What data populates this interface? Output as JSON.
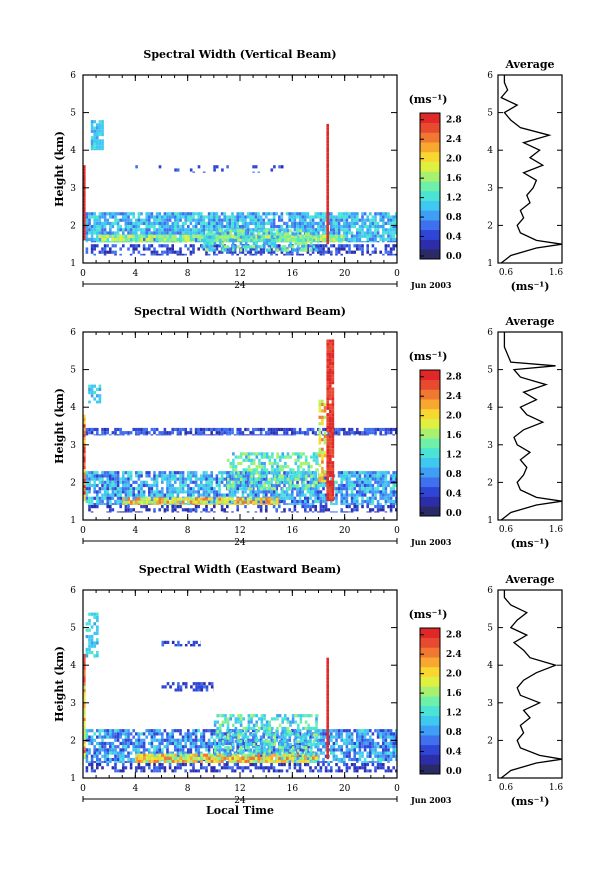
{
  "chart_data": [
    {
      "type": "heatmap",
      "title": "Spectral Width (Vertical Beam)",
      "ylabel": "Height (km)",
      "ylim": [
        1,
        6
      ],
      "xlim": [
        0,
        24
      ],
      "x_ticks": [
        "0",
        "4",
        "8",
        "12",
        "16",
        "20",
        "0"
      ],
      "y_ticks": [
        "1",
        "2",
        "3",
        "4",
        "5",
        "6"
      ],
      "date_label": "Jun 2003",
      "day_label": "24",
      "colorbar": {
        "unit": "(ms⁻¹)",
        "ticks": [
          "0.0",
          "0.4",
          "0.8",
          "1.2",
          "1.6",
          "2.0",
          "2.4",
          "2.8"
        ],
        "range": [
          0,
          3.0
        ],
        "colors": [
          "#2a2a66",
          "#2b2ea8",
          "#2f45d6",
          "#3f70ee",
          "#3f9ef5",
          "#3fc8f0",
          "#4be3d6",
          "#6ff0a8",
          "#a8f070",
          "#e0f040",
          "#f8d830",
          "#f8a830",
          "#f07830",
          "#e84a30",
          "#e02828"
        ]
      },
      "layers": [
        {
          "x0": 0.2,
          "x1": 24,
          "y0": 1.55,
          "y1": 2.35,
          "min": 0.6,
          "max": 1.4,
          "density": 0.85
        },
        {
          "x0": 0.2,
          "x1": 24,
          "y0": 1.2,
          "y1": 1.5,
          "min": 0.2,
          "max": 0.8,
          "density": 0.55
        },
        {
          "x0": 1,
          "x1": 20,
          "y0": 1.55,
          "y1": 1.75,
          "min": 1.3,
          "max": 2.0,
          "density": 0.9
        },
        {
          "x0": 9,
          "x1": 18,
          "y0": 1.3,
          "y1": 1.9,
          "min": 0.8,
          "max": 1.8,
          "density": 0.6
        },
        {
          "x0": 0.6,
          "x1": 1.6,
          "y0": 4.0,
          "y1": 4.8,
          "min": 0.9,
          "max": 1.3,
          "density": 0.8
        },
        {
          "x0": 4,
          "x1": 16,
          "y0": 3.4,
          "y1": 3.6,
          "min": 0.3,
          "max": 0.7,
          "density": 0.12
        },
        {
          "x0": 0,
          "x1": 0.2,
          "y0": 1.6,
          "y1": 3.6,
          "min": 2.8,
          "max": 3.0,
          "density": 1.0
        },
        {
          "x0": 18.6,
          "x1": 18.8,
          "y0": 1.5,
          "y1": 4.7,
          "min": 2.8,
          "max": 3.0,
          "density": 1.0
        }
      ],
      "profile_title": "Average",
      "profile_xlabel": "(ms⁻¹)",
      "profile_xlim": [
        0.6,
        1.6
      ],
      "profile_xticks": [
        "0.6",
        "1.6"
      ],
      "profile_y": [
        1.0,
        1.2,
        1.4,
        1.5,
        1.6,
        1.8,
        2.0,
        2.2,
        2.4,
        2.6,
        2.8,
        3.0,
        3.2,
        3.4,
        3.6,
        3.8,
        4.0,
        4.2,
        4.4,
        4.6,
        4.8,
        5.0,
        5.2,
        5.4,
        5.6,
        5.8,
        6.0
      ],
      "profile_x": [
        0.65,
        0.8,
        1.2,
        1.6,
        1.2,
        0.95,
        0.9,
        1.0,
        0.95,
        1.1,
        1.05,
        1.15,
        1.2,
        1.0,
        1.3,
        1.1,
        1.25,
        1.0,
        1.4,
        0.95,
        0.8,
        0.7,
        0.9,
        0.65,
        0.75,
        0.7,
        0.7
      ]
    },
    {
      "type": "heatmap",
      "title": "Spectral Width (Northward Beam)",
      "ylabel": "Height (km)",
      "ylim": [
        1,
        6
      ],
      "xlim": [
        0,
        24
      ],
      "x_ticks": [
        "0",
        "4",
        "8",
        "12",
        "16",
        "20",
        "0"
      ],
      "y_ticks": [
        "1",
        "2",
        "3",
        "4",
        "5",
        "6"
      ],
      "date_label": "Jun 2003",
      "day_label": "24",
      "colorbar": {
        "unit": "(ms⁻¹)",
        "ticks": [
          "0.0",
          "0.4",
          "0.8",
          "1.2",
          "1.6",
          "2.0",
          "2.4",
          "2.8"
        ],
        "range": [
          0,
          3.0
        ],
        "colors": [
          "#2a2a66",
          "#2b2ea8",
          "#2f45d6",
          "#3f70ee",
          "#3f9ef5",
          "#3fc8f0",
          "#4be3d6",
          "#6ff0a8",
          "#a8f070",
          "#e0f040",
          "#f8d830",
          "#f8a830",
          "#f07830",
          "#e84a30",
          "#e02828"
        ]
      },
      "layers": [
        {
          "x0": 0.2,
          "x1": 24,
          "y0": 1.4,
          "y1": 2.3,
          "min": 0.5,
          "max": 1.4,
          "density": 0.8
        },
        {
          "x0": 0.2,
          "x1": 24,
          "y0": 1.2,
          "y1": 1.4,
          "min": 0.2,
          "max": 0.7,
          "density": 0.45
        },
        {
          "x0": 3,
          "x1": 15,
          "y0": 1.4,
          "y1": 1.6,
          "min": 1.6,
          "max": 2.6,
          "density": 0.85
        },
        {
          "x0": 11,
          "x1": 18,
          "y0": 1.8,
          "y1": 2.8,
          "min": 0.9,
          "max": 1.8,
          "density": 0.55
        },
        {
          "x0": 0.2,
          "x1": 24,
          "y0": 3.25,
          "y1": 3.45,
          "min": 0.3,
          "max": 0.8,
          "density": 0.75
        },
        {
          "x0": 0.4,
          "x1": 1.4,
          "y0": 4.1,
          "y1": 4.6,
          "min": 0.9,
          "max": 1.3,
          "density": 0.6
        },
        {
          "x0": 0,
          "x1": 0.2,
          "y0": 1.5,
          "y1": 3.8,
          "min": 2.0,
          "max": 3.0,
          "density": 1.0
        },
        {
          "x0": 18.6,
          "x1": 19.2,
          "y0": 1.5,
          "y1": 5.8,
          "min": 2.6,
          "max": 3.0,
          "density": 0.95
        },
        {
          "x0": 18.0,
          "x1": 18.6,
          "y0": 2.0,
          "y1": 4.2,
          "min": 1.6,
          "max": 2.6,
          "density": 0.6
        }
      ],
      "profile_title": "Average",
      "profile_xlabel": "(ms⁻¹)",
      "profile_xlim": [
        0.6,
        1.6
      ],
      "profile_xticks": [
        "0.6",
        "1.6"
      ],
      "profile_y": [
        1.0,
        1.2,
        1.4,
        1.5,
        1.6,
        1.8,
        2.0,
        2.2,
        2.4,
        2.6,
        2.8,
        3.0,
        3.2,
        3.4,
        3.6,
        3.8,
        4.0,
        4.2,
        4.4,
        4.6,
        4.8,
        5.0,
        5.1,
        5.2,
        5.4,
        5.6,
        5.8,
        6.0
      ],
      "profile_x": [
        0.65,
        0.8,
        1.2,
        1.6,
        1.2,
        0.95,
        0.9,
        1.0,
        1.05,
        0.95,
        1.1,
        0.9,
        0.85,
        1.0,
        1.3,
        1.05,
        0.95,
        1.2,
        1.0,
        1.35,
        0.95,
        0.85,
        1.5,
        0.8,
        0.75,
        0.7,
        0.7,
        0.7
      ]
    },
    {
      "type": "heatmap",
      "title": "Spectral Width (Eastward Beam)",
      "xlabel": "Local Time",
      "ylabel": "Height (km)",
      "ylim": [
        1,
        6
      ],
      "xlim": [
        0,
        24
      ],
      "x_ticks": [
        "0",
        "4",
        "8",
        "12",
        "16",
        "20",
        "0"
      ],
      "y_ticks": [
        "1",
        "2",
        "3",
        "4",
        "5",
        "6"
      ],
      "date_label": "Jun 2003",
      "day_label": "24",
      "colorbar": {
        "unit": "(ms⁻¹)",
        "ticks": [
          "0.0",
          "0.4",
          "0.8",
          "1.2",
          "1.6",
          "2.0",
          "2.4",
          "2.8"
        ],
        "range": [
          0,
          3.0
        ],
        "colors": [
          "#2a2a66",
          "#2b2ea8",
          "#2f45d6",
          "#3f70ee",
          "#3f9ef5",
          "#3fc8f0",
          "#4be3d6",
          "#6ff0a8",
          "#a8f070",
          "#e0f040",
          "#f8d830",
          "#f8a830",
          "#f07830",
          "#e84a30",
          "#e02828"
        ]
      },
      "layers": [
        {
          "x0": 0.2,
          "x1": 24,
          "y0": 1.4,
          "y1": 2.3,
          "min": 0.4,
          "max": 1.3,
          "density": 0.75
        },
        {
          "x0": 0.2,
          "x1": 24,
          "y0": 1.15,
          "y1": 1.4,
          "min": 0.2,
          "max": 0.7,
          "density": 0.5
        },
        {
          "x0": 4,
          "x1": 18,
          "y0": 1.4,
          "y1": 1.65,
          "min": 1.5,
          "max": 2.6,
          "density": 0.85
        },
        {
          "x0": 10,
          "x1": 18,
          "y0": 1.6,
          "y1": 2.7,
          "min": 0.9,
          "max": 1.7,
          "density": 0.55
        },
        {
          "x0": 6,
          "x1": 10,
          "y0": 3.3,
          "y1": 3.55,
          "min": 0.3,
          "max": 0.7,
          "density": 0.55
        },
        {
          "x0": 6,
          "x1": 9,
          "y0": 4.5,
          "y1": 4.65,
          "min": 0.3,
          "max": 0.7,
          "density": 0.5
        },
        {
          "x0": 0.2,
          "x1": 1.2,
          "y0": 4.2,
          "y1": 5.4,
          "min": 0.9,
          "max": 1.4,
          "density": 0.6
        },
        {
          "x0": 0,
          "x1": 0.2,
          "y0": 1.5,
          "y1": 4.3,
          "min": 1.6,
          "max": 2.8,
          "density": 1.0
        },
        {
          "x0": 18.6,
          "x1": 18.8,
          "y0": 1.5,
          "y1": 4.2,
          "min": 2.8,
          "max": 3.0,
          "density": 1.0
        }
      ],
      "profile_title": "Average",
      "profile_xlabel": "(ms⁻¹)",
      "profile_xlim": [
        0.6,
        1.6
      ],
      "profile_xticks": [
        "0.6",
        "1.6"
      ],
      "profile_y": [
        1.0,
        1.2,
        1.4,
        1.5,
        1.6,
        1.8,
        2.0,
        2.2,
        2.4,
        2.6,
        2.8,
        3.0,
        3.2,
        3.4,
        3.6,
        3.8,
        4.0,
        4.2,
        4.4,
        4.6,
        4.8,
        5.0,
        5.2,
        5.4,
        5.6,
        5.8,
        6.0
      ],
      "profile_x": [
        0.65,
        0.8,
        1.2,
        1.6,
        1.25,
        0.95,
        0.9,
        1.0,
        0.95,
        1.1,
        1.0,
        1.25,
        0.95,
        0.9,
        1.0,
        1.2,
        1.5,
        1.1,
        1.0,
        0.85,
        1.05,
        0.8,
        0.9,
        1.05,
        0.8,
        0.7,
        0.7
      ]
    }
  ]
}
